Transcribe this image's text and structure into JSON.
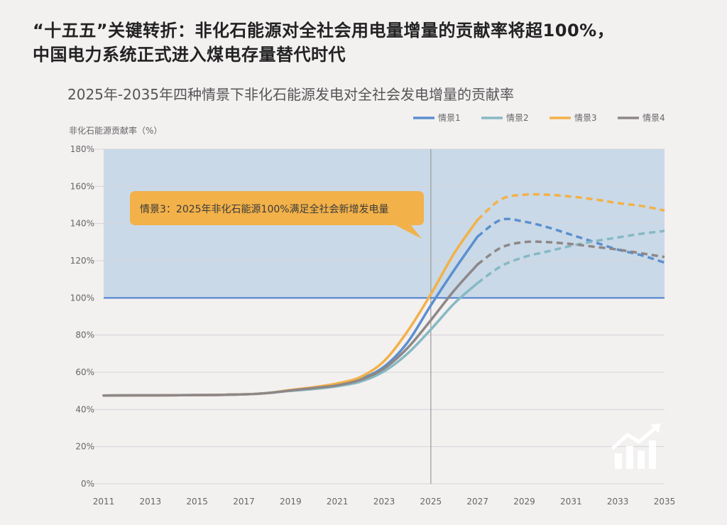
{
  "headline": {
    "line1": "“十五五”关键转折：非化石能源对全社会用电量增量的贡献率将超100%，",
    "line2": "中国电力系统正式进入煤电存量替代时代"
  },
  "chart_data": {
    "type": "line",
    "title": "2025年-2035年四种情景下非化石能源发电对全社会发电增量的贡献率",
    "ylabel": "非化石能源贡献率（%）",
    "xlabel": "",
    "xlim": [
      2011,
      2035
    ],
    "ylim": [
      0,
      180
    ],
    "x_ticks": [
      2011,
      2013,
      2015,
      2017,
      2019,
      2021,
      2023,
      2025,
      2027,
      2029,
      2031,
      2033,
      2035
    ],
    "y_ticks": [
      0,
      20,
      40,
      60,
      80,
      100,
      120,
      140,
      160,
      180
    ],
    "y_tick_labels": [
      "0%",
      "20%",
      "40%",
      "60%",
      "80%",
      "100%",
      "120%",
      "140%",
      "160%",
      "180%"
    ],
    "reference_line": {
      "y": 100,
      "color": "#4a7fcf"
    },
    "divider_x": 2025,
    "forecast_start": 2027,
    "legend_position": "top-right",
    "annotation": {
      "text": "情景3：2025年非化石能源100%满足全社会新增发电量",
      "color": "#f2b149",
      "points_to": [
        2025,
        100
      ]
    },
    "series": [
      {
        "name": "情景1",
        "color": "#5b8fcf",
        "x": [
          2011,
          2013,
          2015,
          2017,
          2018,
          2019,
          2020,
          2021,
          2022,
          2023,
          2024,
          2025,
          2026,
          2027,
          2028,
          2029,
          2030,
          2031,
          2032,
          2033,
          2034,
          2035
        ],
        "y": [
          47.5,
          47.6,
          47.7,
          48.1,
          48.8,
          50.2,
          51.5,
          53.5,
          56.5,
          63,
          76,
          96,
          115,
          133,
          142,
          141,
          138,
          134,
          130,
          126,
          123,
          119
        ]
      },
      {
        "name": "情景2",
        "color": "#86b9c4",
        "x": [
          2011,
          2013,
          2015,
          2017,
          2018,
          2019,
          2020,
          2021,
          2022,
          2023,
          2024,
          2025,
          2026,
          2027,
          2028,
          2029,
          2030,
          2031,
          2032,
          2033,
          2034,
          2035
        ],
        "y": [
          47.5,
          47.6,
          47.7,
          48.1,
          48.8,
          50.0,
          51.0,
          52.5,
          55.0,
          60.5,
          70,
          83,
          97,
          108,
          117,
          122,
          125,
          128,
          130.5,
          132.5,
          134.5,
          136
        ]
      },
      {
        "name": "情景3",
        "color": "#f2b149",
        "x": [
          2011,
          2013,
          2015,
          2017,
          2018,
          2019,
          2020,
          2021,
          2022,
          2023,
          2024,
          2025,
          2026,
          2027,
          2028,
          2029,
          2030,
          2031,
          2032,
          2033,
          2034,
          2035
        ],
        "y": [
          47.5,
          47.6,
          47.7,
          48.1,
          48.8,
          50.5,
          52.0,
          54.0,
          57.5,
          66,
          82,
          102,
          124,
          142,
          153,
          155.5,
          155.5,
          154.5,
          153,
          151,
          149.5,
          147
        ]
      },
      {
        "name": "情景4",
        "color": "#8e8787",
        "x": [
          2011,
          2013,
          2015,
          2017,
          2018,
          2019,
          2020,
          2021,
          2022,
          2023,
          2024,
          2025,
          2026,
          2027,
          2028,
          2029,
          2030,
          2031,
          2032,
          2033,
          2034,
          2035
        ],
        "y": [
          47.5,
          47.6,
          47.7,
          48.1,
          48.8,
          50.2,
          51.5,
          53.0,
          56.0,
          62,
          73,
          88,
          104,
          118,
          127,
          130,
          130,
          129,
          127.5,
          126,
          124,
          122
        ]
      }
    ]
  },
  "icons": {
    "corner": "growth-chart-icon"
  }
}
